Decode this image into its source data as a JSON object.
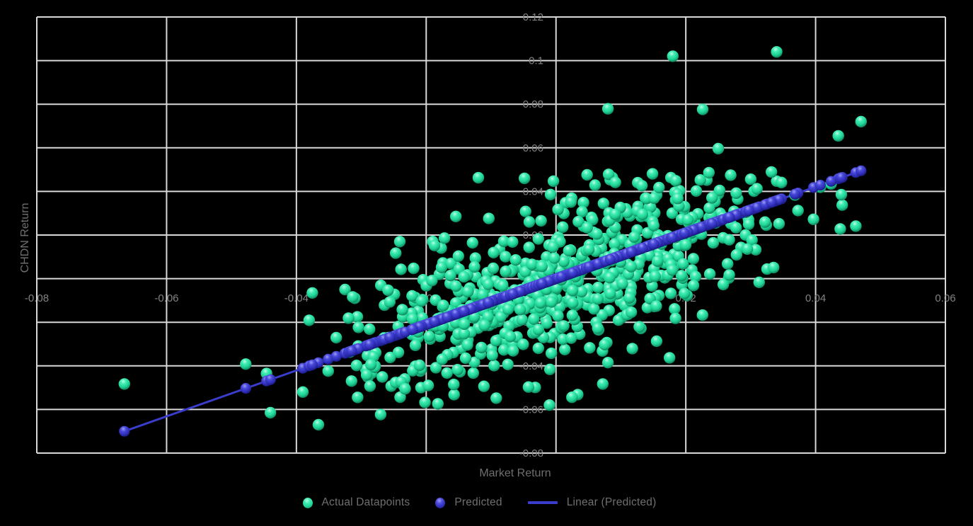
{
  "chart_data": {
    "type": "scatter",
    "title": "",
    "xlabel": "Market Return",
    "ylabel": "CHDN Return",
    "xlim": [
      -0.08,
      0.06
    ],
    "ylim": [
      -0.08,
      0.12
    ],
    "grid": true,
    "legend_position": "bottom",
    "x_ticks": [
      -0.08,
      -0.06,
      -0.04,
      -0.02,
      0,
      0.02,
      0.04,
      0.06
    ],
    "x_tick_labels": [
      "-0.08",
      "-0.06",
      "-0.04",
      "-0.02",
      "0",
      "0.02",
      "0.04",
      "0.06"
    ],
    "y_ticks": [
      0.12,
      0.1,
      0.08,
      0.06,
      0.04,
      0.02,
      0,
      -0.02,
      -0.04,
      -0.06,
      -0.08
    ],
    "y_tick_labels": [
      "0.12",
      "0.1",
      "0.08",
      "0.06",
      "0.04",
      "0.02",
      "0",
      "-0.02",
      "-0.04",
      "-0.06",
      "-0.08"
    ],
    "colors": {
      "background": "#000000",
      "gridline": "#d8d8d8",
      "tick_label": "#828282",
      "axis_title": "#6e6e6e",
      "actual": "#2ae0a0",
      "predicted": "#3a3ccb"
    },
    "series": [
      {
        "name": "Actual Datapoints",
        "type": "scatter",
        "marker": "sphere-green",
        "points": [
          [
            -0.0665,
            -0.0483
          ],
          [
            -0.0478,
            -0.0392
          ],
          [
            -0.0446,
            -0.0435
          ],
          [
            -0.044,
            -0.0615
          ],
          [
            -0.039,
            -0.052
          ],
          [
            -0.0366,
            -0.067
          ],
          [
            -0.0351,
            -0.0424
          ],
          [
            -0.0325,
            -0.005
          ],
          [
            -0.031,
            -0.009
          ],
          [
            -0.0293,
            -0.0417
          ],
          [
            -0.0284,
            -0.0434
          ],
          [
            -0.0254,
            -0.0493
          ],
          [
            -0.0247,
            0.0117
          ],
          [
            -0.0235,
            -0.049
          ],
          [
            -0.0233,
            -0.046
          ],
          [
            -0.0209,
            -0.0424
          ],
          [
            -0.0208,
            -0.05
          ],
          [
            -0.019,
            0.017
          ],
          [
            -0.0182,
            -0.0574
          ],
          [
            -0.0157,
            -0.0532
          ],
          [
            -0.0092,
            -0.0548
          ],
          [
            -0.0032,
            -0.0499
          ],
          [
            -0.001,
            -0.058
          ],
          [
            0.0072,
            -0.0483
          ],
          [
            0.008,
            -0.0385
          ],
          [
            -0.0004,
            0.0447
          ],
          [
            0.0048,
            0.0476
          ],
          [
            0.0087,
            0.0463
          ],
          [
            0.0126,
            0.044
          ],
          [
            0.0177,
            0.0463
          ],
          [
            0.008,
            0.0779
          ],
          [
            0.018,
            0.102
          ],
          [
            0.0226,
            0.0776
          ],
          [
            0.025,
            0.0596
          ],
          [
            0.025,
            0.0388
          ],
          [
            0.028,
            0.0365
          ],
          [
            0.0285,
            0.0143
          ],
          [
            0.0292,
            0.02
          ],
          [
            0.03,
            0.0456
          ],
          [
            0.0313,
            -0.0017
          ],
          [
            0.0324,
            0.0245
          ],
          [
            0.034,
            0.104
          ],
          [
            0.034,
            0.0447
          ],
          [
            0.0237,
            0.0021
          ],
          [
            0.0435,
            0.0655
          ],
          [
            0.0438,
            0.0228
          ],
          [
            0.0462,
            0.0241
          ],
          [
            0.047,
            0.072
          ],
          [
            0.0155,
            -0.0287
          ],
          [
            0.0175,
            -0.0363
          ]
        ],
        "cloud": {
          "description": "dense elliptical cluster of remaining datapoints",
          "seed": 7,
          "count": 640,
          "x_mean": 0.001,
          "x_sd": 0.015,
          "resid_sd": 0.018,
          "x_min": -0.0525,
          "x_max": 0.0455,
          "y_min": -0.0685,
          "y_max": 0.0495
        }
      },
      {
        "name": "Predicted",
        "type": "scatter",
        "marker": "sphere-blue",
        "rule": "predicted = slope * market + intercept (one point per actual datapoint)",
        "slope": 1.053,
        "intercept": 0
      },
      {
        "name": "Linear (Predicted)",
        "type": "line",
        "x1": -0.0665,
        "y1": -0.07,
        "x2": 0.0473,
        "y2": 0.0498
      }
    ]
  },
  "legend": {
    "items": [
      {
        "label": "Actual Datapoints",
        "marker": "green-sphere-icon"
      },
      {
        "label": "Predicted",
        "marker": "blue-sphere-icon"
      },
      {
        "label": "Linear (Predicted)",
        "marker": "blue-line-swatch"
      }
    ]
  }
}
